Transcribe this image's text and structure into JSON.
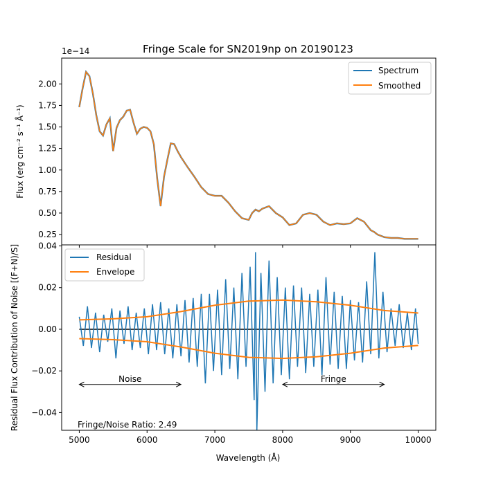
{
  "figure": {
    "title": "Fringe Scale for SN2019np on 20190123",
    "xlabel": "Wavelength (Å)",
    "footnote": "Fringe/Noise Ratio: 2.49"
  },
  "chart_data": [
    {
      "type": "line",
      "panel": "top",
      "ylabel": "Flux (erg cm⁻² s⁻¹ Å⁻¹)",
      "offset_text": "1e−14",
      "xlim": [
        4740,
        10260
      ],
      "ylim": [
        0.13,
        2.3
      ],
      "x_ticks": [
        5000,
        6000,
        7000,
        8000,
        9000,
        10000
      ],
      "y_ticks": [
        0.25,
        0.5,
        0.75,
        1.0,
        1.25,
        1.5,
        1.75,
        2.0
      ],
      "y_tick_labels": [
        "0.25",
        "0.50",
        "0.75",
        "1.00",
        "1.25",
        "1.50",
        "1.75",
        "2.00"
      ],
      "legend_position": "top-right",
      "series": [
        {
          "name": "Spectrum",
          "color": "#1f77b4",
          "x": [
            5000,
            5050,
            5100,
            5150,
            5200,
            5250,
            5300,
            5350,
            5400,
            5450,
            5500,
            5550,
            5600,
            5650,
            5700,
            5750,
            5800,
            5850,
            5900,
            5950,
            6000,
            6050,
            6100,
            6150,
            6200,
            6250,
            6300,
            6350,
            6400,
            6450,
            6500,
            6600,
            6700,
            6800,
            6900,
            7000,
            7100,
            7200,
            7300,
            7400,
            7500,
            7550,
            7600,
            7650,
            7700,
            7800,
            7900,
            8000,
            8100,
            8200,
            8300,
            8400,
            8500,
            8600,
            8700,
            8800,
            8900,
            9000,
            9100,
            9200,
            9300,
            9350,
            9400,
            9500,
            9600,
            9700,
            9800,
            9900,
            10000
          ],
          "values": [
            1.73,
            1.95,
            2.14,
            2.09,
            1.89,
            1.64,
            1.45,
            1.4,
            1.53,
            1.6,
            1.22,
            1.49,
            1.58,
            1.62,
            1.69,
            1.7,
            1.55,
            1.42,
            1.48,
            1.5,
            1.49,
            1.45,
            1.3,
            0.9,
            0.58,
            0.92,
            1.12,
            1.31,
            1.3,
            1.22,
            1.15,
            1.03,
            0.92,
            0.8,
            0.72,
            0.7,
            0.7,
            0.62,
            0.52,
            0.44,
            0.42,
            0.5,
            0.54,
            0.52,
            0.55,
            0.58,
            0.5,
            0.45,
            0.36,
            0.38,
            0.48,
            0.5,
            0.48,
            0.4,
            0.36,
            0.38,
            0.37,
            0.38,
            0.44,
            0.4,
            0.3,
            0.28,
            0.25,
            0.22,
            0.21,
            0.21,
            0.2,
            0.2,
            0.2
          ]
        },
        {
          "name": "Smoothed",
          "color": "#ff7f0e",
          "x": [
            5000,
            5050,
            5100,
            5150,
            5200,
            5250,
            5300,
            5350,
            5400,
            5450,
            5500,
            5550,
            5600,
            5650,
            5700,
            5750,
            5800,
            5850,
            5900,
            5950,
            6000,
            6050,
            6100,
            6150,
            6200,
            6250,
            6300,
            6350,
            6400,
            6450,
            6500,
            6600,
            6700,
            6800,
            6900,
            7000,
            7100,
            7200,
            7300,
            7400,
            7500,
            7550,
            7600,
            7650,
            7700,
            7800,
            7900,
            8000,
            8100,
            8200,
            8300,
            8400,
            8500,
            8600,
            8700,
            8800,
            8900,
            9000,
            9100,
            9200,
            9300,
            9350,
            9400,
            9500,
            9600,
            9700,
            9800,
            9900,
            10000
          ],
          "values": [
            1.73,
            1.95,
            2.14,
            2.09,
            1.89,
            1.64,
            1.45,
            1.4,
            1.53,
            1.6,
            1.22,
            1.49,
            1.58,
            1.62,
            1.69,
            1.7,
            1.55,
            1.42,
            1.48,
            1.5,
            1.49,
            1.45,
            1.3,
            0.9,
            0.58,
            0.92,
            1.12,
            1.31,
            1.3,
            1.22,
            1.15,
            1.03,
            0.92,
            0.8,
            0.72,
            0.7,
            0.7,
            0.62,
            0.52,
            0.44,
            0.42,
            0.5,
            0.54,
            0.52,
            0.55,
            0.58,
            0.5,
            0.45,
            0.36,
            0.38,
            0.48,
            0.5,
            0.48,
            0.4,
            0.36,
            0.38,
            0.37,
            0.38,
            0.44,
            0.4,
            0.3,
            0.28,
            0.25,
            0.22,
            0.21,
            0.21,
            0.2,
            0.2,
            0.2
          ]
        }
      ]
    },
    {
      "type": "line",
      "panel": "bottom",
      "ylabel": "Residual Flux Contribution of Noise [(F+N)/S]",
      "xlim": [
        4740,
        10260
      ],
      "ylim": [
        -0.0485,
        0.0405
      ],
      "x_ticks": [
        5000,
        6000,
        7000,
        8000,
        9000,
        10000
      ],
      "x_tick_labels": [
        "5000",
        "6000",
        "7000",
        "8000",
        "9000",
        "10000"
      ],
      "y_ticks": [
        -0.04,
        -0.02,
        0.0,
        0.02,
        0.04
      ],
      "y_tick_labels": [
        "−0.04",
        "−0.02",
        "0.00",
        "0.02",
        "0.04"
      ],
      "legend_position": "top-left",
      "zero_line_color": "#000000",
      "annotations": [
        {
          "label": "Noise",
          "x_start": 5000,
          "x_end": 6500,
          "y": -0.0265
        },
        {
          "label": "Fringe",
          "x_start": 8000,
          "x_end": 9500,
          "y": -0.0265
        }
      ],
      "series": [
        {
          "name": "Residual",
          "color": "#1f77b4",
          "x": [
            5000,
            5060,
            5120,
            5180,
            5240,
            5300,
            5360,
            5420,
            5480,
            5540,
            5600,
            5660,
            5720,
            5780,
            5840,
            5900,
            5960,
            6020,
            6080,
            6140,
            6200,
            6260,
            6320,
            6380,
            6440,
            6500,
            6560,
            6620,
            6680,
            6740,
            6800,
            6860,
            6920,
            6980,
            7040,
            7100,
            7160,
            7220,
            7280,
            7340,
            7400,
            7460,
            7520,
            7580,
            7600,
            7620,
            7680,
            7740,
            7800,
            7860,
            7920,
            7980,
            8040,
            8100,
            8160,
            8220,
            8280,
            8340,
            8400,
            8460,
            8520,
            8580,
            8640,
            8700,
            8760,
            8820,
            8880,
            8940,
            9000,
            9060,
            9120,
            9180,
            9240,
            9300,
            9360,
            9420,
            9480,
            9540,
            9600,
            9660,
            9720,
            9780,
            9840,
            9900,
            9960,
            10000
          ],
          "values": [
            0.006,
            -0.008,
            0.011,
            -0.009,
            0.008,
            -0.011,
            0.007,
            -0.006,
            0.01,
            -0.014,
            0.009,
            -0.007,
            0.011,
            -0.01,
            0.008,
            -0.009,
            0.01,
            -0.012,
            0.012,
            -0.01,
            0.013,
            -0.012,
            0.01,
            -0.014,
            0.012,
            -0.013,
            0.014,
            -0.016,
            0.015,
            -0.018,
            0.017,
            -0.026,
            0.017,
            -0.02,
            0.019,
            -0.022,
            0.024,
            -0.019,
            0.02,
            -0.024,
            0.027,
            -0.018,
            0.03,
            -0.034,
            0.037,
            -0.049,
            0.027,
            -0.03,
            0.033,
            -0.026,
            0.025,
            -0.022,
            0.02,
            -0.024,
            0.021,
            -0.018,
            0.02,
            -0.021,
            0.017,
            -0.018,
            0.019,
            -0.022,
            0.025,
            -0.017,
            0.018,
            -0.019,
            0.016,
            -0.019,
            0.014,
            -0.015,
            0.013,
            -0.016,
            0.023,
            -0.012,
            0.037,
            -0.014,
            0.018,
            -0.011,
            0.01,
            -0.008,
            0.012,
            -0.009,
            0.008,
            -0.01,
            0.01,
            -0.007
          ]
        },
        {
          "name": "Envelope",
          "color": "#ff7f0e",
          "x": [
            5000,
            5500,
            6000,
            6500,
            7000,
            7500,
            8000,
            8500,
            9000,
            9500,
            10000
          ],
          "upper": [
            0.0045,
            0.005,
            0.006,
            0.0085,
            0.0115,
            0.0135,
            0.014,
            0.0132,
            0.0115,
            0.009,
            0.0078
          ],
          "lower": [
            -0.0045,
            -0.005,
            -0.006,
            -0.0085,
            -0.0115,
            -0.0135,
            -0.014,
            -0.0132,
            -0.0115,
            -0.009,
            -0.0078
          ]
        }
      ]
    }
  ]
}
